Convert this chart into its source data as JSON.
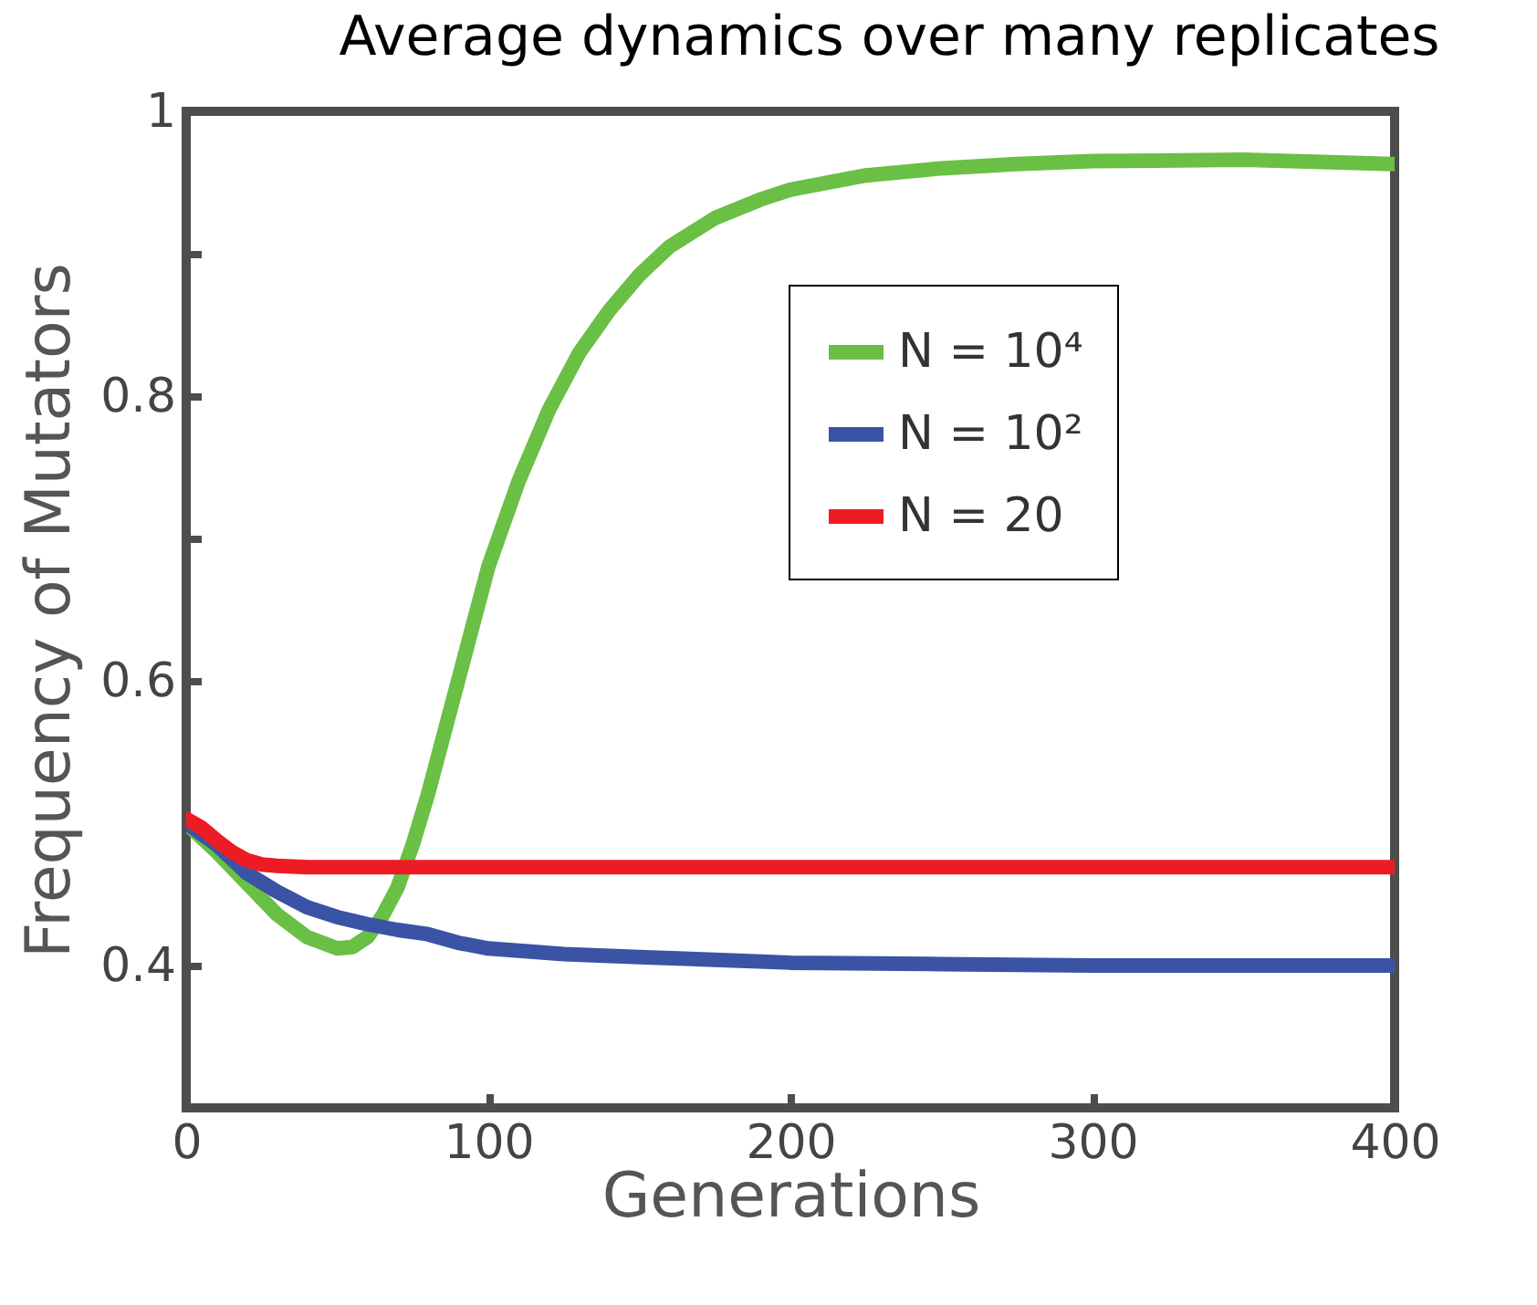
{
  "chart_data": {
    "type": "line",
    "title": "Average dynamics over many replicates",
    "xlabel": "Generations",
    "ylabel": "Frequency of Mutators",
    "xlim": [
      0,
      400
    ],
    "xticks": [
      0,
      100,
      200,
      300,
      400
    ],
    "ylim": [
      0.3,
      1
    ],
    "yticks": [
      0.4,
      {
        "value": 0.5,
        "label": null
      },
      0.6,
      {
        "value": 0.7,
        "label": null
      },
      0.8,
      {
        "value": 0.9,
        "label": null
      },
      1
    ],
    "grid": false,
    "legend": "top right",
    "marker": "none",
    "line_style": "solid",
    "series": [
      {
        "name": "N = 10⁴",
        "color": "#6abf45",
        "x": [
          0,
          10,
          20,
          30,
          40,
          50,
          55,
          60,
          65,
          70,
          75,
          80,
          85,
          90,
          95,
          100,
          110,
          120,
          130,
          140,
          150,
          160,
          175,
          190,
          200,
          225,
          250,
          275,
          300,
          350,
          400
        ],
        "values": [
          0.5,
          0.48,
          0.458,
          0.436,
          0.42,
          0.412,
          0.413,
          0.42,
          0.435,
          0.455,
          0.485,
          0.52,
          0.56,
          0.6,
          0.64,
          0.68,
          0.74,
          0.79,
          0.83,
          0.86,
          0.885,
          0.905,
          0.925,
          0.938,
          0.945,
          0.955,
          0.96,
          0.963,
          0.965,
          0.966,
          0.963
        ]
      },
      {
        "name": "N = 10²",
        "color": "#3a53a4",
        "x": [
          0,
          10,
          20,
          30,
          40,
          50,
          60,
          70,
          80,
          90,
          100,
          125,
          150,
          175,
          200,
          250,
          300,
          350,
          400
        ],
        "values": [
          0.5,
          0.485,
          0.465,
          0.452,
          0.441,
          0.434,
          0.429,
          0.425,
          0.422,
          0.416,
          0.412,
          0.408,
          0.406,
          0.404,
          0.402,
          0.401,
          0.4,
          0.4,
          0.4
        ]
      },
      {
        "name": "N = 20",
        "color": "#ed1c24",
        "x": [
          0,
          5,
          10,
          15,
          20,
          25,
          30,
          40,
          60,
          100,
          200,
          300,
          400
        ],
        "values": [
          0.503,
          0.497,
          0.488,
          0.48,
          0.474,
          0.471,
          0.47,
          0.469,
          0.469,
          0.469,
          0.469,
          0.469,
          0.469
        ]
      }
    ]
  }
}
